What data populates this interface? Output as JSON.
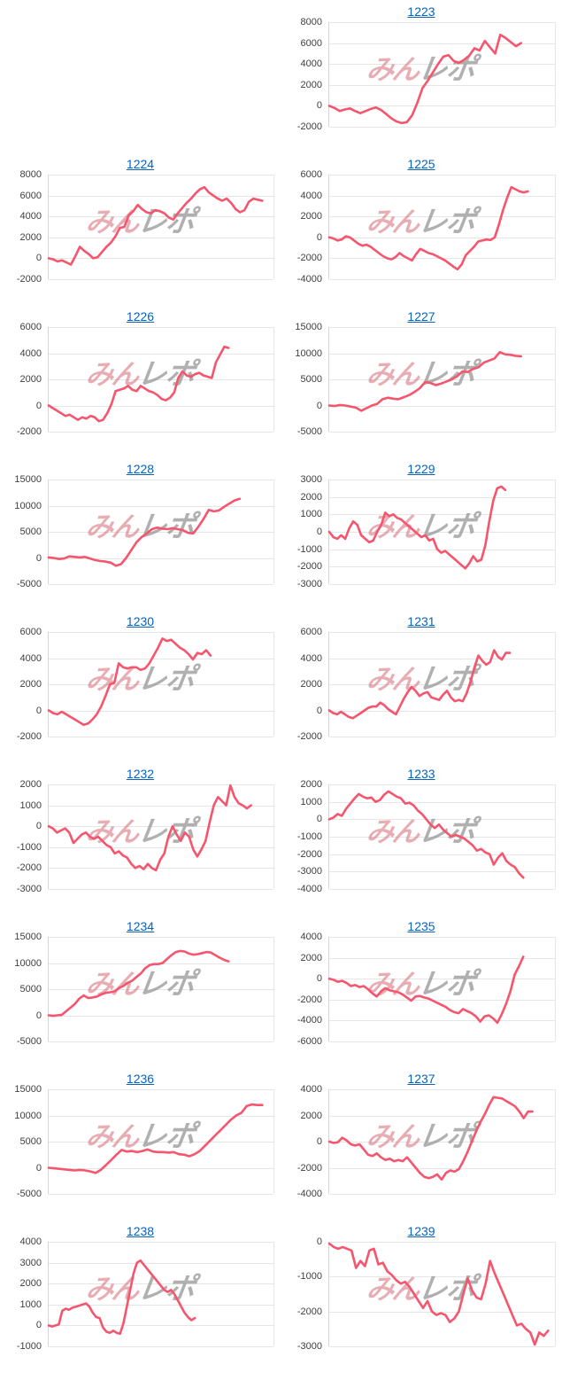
{
  "page": {
    "background": "#ffffff",
    "title_link_color": "#0563c1",
    "tick_label_color": "#404040",
    "gridline_color": "#e6e6e6"
  },
  "line_color": "#f5566e",
  "watermark": {
    "text_pink": "みん",
    "text_gray": "レポ",
    "pink": "#d56974",
    "gray": "#919191"
  },
  "chart_data": [
    {
      "title": "1223",
      "type": "line",
      "xlabel": "",
      "ylabel": "",
      "grid": true,
      "legend": "none",
      "ylim": [
        -2000,
        8000
      ],
      "ytick_step": 2000,
      "x_end": 0.85,
      "values": [
        0,
        -200,
        -500,
        -350,
        -250,
        -500,
        -700,
        -500,
        -300,
        -150,
        -400,
        -800,
        -1200,
        -1500,
        -1650,
        -1550,
        -900,
        300,
        1700,
        2400,
        3200,
        4000,
        4700,
        4850,
        4300,
        4100,
        4400,
        4800,
        5500,
        5300,
        6200,
        5600,
        5000,
        6800,
        6500,
        6100,
        5700,
        6000
      ]
    },
    {
      "title": "1224",
      "type": "line",
      "xlabel": "",
      "ylabel": "",
      "grid": true,
      "legend": "none",
      "ylim": [
        -2000,
        8000
      ],
      "ytick_step": 2000,
      "x_end": 0.95,
      "values": [
        0,
        -100,
        -300,
        -200,
        -400,
        -600,
        200,
        1100,
        700,
        400,
        0,
        100,
        600,
        1100,
        1500,
        2100,
        2900,
        3000,
        4100,
        4500,
        5100,
        4700,
        4400,
        4300,
        4600,
        4500,
        4300,
        3900,
        3700,
        4300,
        4800,
        5300,
        5700,
        6200,
        6600,
        6800,
        6300,
        6000,
        5700,
        5500,
        5700,
        5300,
        4700,
        4400,
        4600,
        5400,
        5700,
        5600,
        5500
      ]
    },
    {
      "title": "1225",
      "type": "line",
      "xlabel": "",
      "ylabel": "",
      "grid": true,
      "legend": "none",
      "ylim": [
        -4000,
        6000
      ],
      "ytick_step": 2000,
      "x_end": 0.88,
      "values": [
        0,
        -100,
        -300,
        -200,
        100,
        0,
        -300,
        -600,
        -800,
        -700,
        -900,
        -1200,
        -1500,
        -1800,
        -2000,
        -2100,
        -1900,
        -1500,
        -1800,
        -2000,
        -2200,
        -1600,
        -1100,
        -1300,
        -1500,
        -1600,
        -1800,
        -2000,
        -2200,
        -2500,
        -2800,
        -3050,
        -2600,
        -1700,
        -1300,
        -900,
        -400,
        -300,
        -200,
        -250,
        0,
        1200,
        2600,
        3800,
        4800,
        4600,
        4400,
        4300,
        4400
      ]
    },
    {
      "title": "1226",
      "type": "line",
      "xlabel": "",
      "ylabel": "",
      "grid": true,
      "legend": "none",
      "ylim": [
        -2000,
        6000
      ],
      "ytick_step": 2000,
      "x_end": 0.8,
      "values": [
        0,
        -200,
        -400,
        -600,
        -800,
        -700,
        -900,
        -1100,
        -900,
        -1000,
        -800,
        -900,
        -1200,
        -1100,
        -600,
        100,
        1100,
        1200,
        1300,
        1500,
        1200,
        1100,
        1500,
        1300,
        1100,
        1000,
        800,
        500,
        400,
        600,
        1000,
        2100,
        2600,
        2300,
        2200,
        2400,
        2500,
        2300,
        2200,
        2100,
        3300,
        3900,
        4500,
        4400
      ]
    },
    {
      "title": "1227",
      "type": "line",
      "xlabel": "",
      "ylabel": "",
      "grid": true,
      "legend": "none",
      "ylim": [
        -5000,
        15000
      ],
      "ytick_step": 5000,
      "x_end": 0.85,
      "values": [
        0,
        -100,
        100,
        0,
        -200,
        -400,
        -1000,
        -500,
        0,
        300,
        1200,
        1500,
        1300,
        1200,
        1600,
        2000,
        2600,
        3300,
        4500,
        4300,
        3900,
        4200,
        4600,
        5000,
        5600,
        6500,
        6400,
        7000,
        7300,
        8200,
        8600,
        9000,
        10200,
        9800,
        9700,
        9500,
        9400
      ]
    },
    {
      "title": "1228",
      "type": "line",
      "xlabel": "",
      "ylabel": "",
      "grid": true,
      "legend": "none",
      "ylim": [
        -5000,
        15000
      ],
      "ytick_step": 5000,
      "x_end": 0.85,
      "values": [
        100,
        0,
        -200,
        -100,
        300,
        200,
        100,
        200,
        -100,
        -400,
        -600,
        -700,
        -900,
        -1500,
        -1200,
        0,
        1500,
        3000,
        4000,
        4700,
        5500,
        5800,
        5600,
        5500,
        5700,
        5500,
        5300,
        4800,
        4700,
        6000,
        7500,
        9200,
        8900,
        9100,
        9800,
        10400,
        11000,
        11300
      ]
    },
    {
      "title": "1229",
      "type": "line",
      "xlabel": "",
      "ylabel": "",
      "grid": true,
      "legend": "none",
      "ylim": [
        -3000,
        3000
      ],
      "ytick_step": 1000,
      "x_end": 0.78,
      "values": [
        0,
        -300,
        -400,
        -200,
        -400,
        200,
        600,
        400,
        -200,
        -400,
        -600,
        -500,
        0,
        400,
        1100,
        900,
        1000,
        800,
        700,
        500,
        300,
        100,
        -100,
        -300,
        -200,
        -500,
        -400,
        -1000,
        -1200,
        -1100,
        -1300,
        -1500,
        -1700,
        -1900,
        -2100,
        -1800,
        -1400,
        -1700,
        -1600,
        -800,
        600,
        1800,
        2500,
        2600,
        2400
      ]
    },
    {
      "title": "1230",
      "type": "line",
      "xlabel": "",
      "ylabel": "",
      "grid": true,
      "legend": "none",
      "ylim": [
        -2000,
        6000
      ],
      "ytick_step": 2000,
      "x_end": 0.72,
      "values": [
        0,
        -200,
        -300,
        -100,
        -300,
        -500,
        -700,
        -900,
        -1100,
        -1000,
        -700,
        -300,
        300,
        1100,
        2000,
        2100,
        3600,
        3300,
        3200,
        3300,
        3300,
        3100,
        3200,
        3600,
        4200,
        4800,
        5500,
        5300,
        5400,
        5100,
        4800,
        4600,
        4300,
        3900,
        4400,
        4300,
        4600,
        4200
      ]
    },
    {
      "title": "1231",
      "type": "line",
      "xlabel": "",
      "ylabel": "",
      "grid": true,
      "legend": "none",
      "ylim": [
        -2000,
        6000
      ],
      "ytick_step": 2000,
      "x_end": 0.8,
      "values": [
        0,
        -200,
        -300,
        -100,
        -300,
        -500,
        -600,
        -400,
        -200,
        0,
        200,
        300,
        300,
        600,
        400,
        100,
        -100,
        -300,
        300,
        900,
        1400,
        1800,
        1500,
        1100,
        1300,
        1400,
        1000,
        900,
        800,
        1200,
        1500,
        1000,
        700,
        800,
        700,
        1300,
        2200,
        3300,
        4200,
        3800,
        3500,
        3700,
        4600,
        4100,
        3900,
        4400,
        4400
      ]
    },
    {
      "title": "1232",
      "type": "line",
      "xlabel": "",
      "ylabel": "",
      "grid": true,
      "legend": "none",
      "ylim": [
        -3000,
        2000
      ],
      "ytick_step": 1000,
      "x_end": 0.9,
      "values": [
        0,
        -100,
        -300,
        -200,
        -100,
        -300,
        -800,
        -600,
        -400,
        -300,
        -500,
        -600,
        -500,
        -700,
        -900,
        -1000,
        -1300,
        -1200,
        -1400,
        -1500,
        -1800,
        -2000,
        -1900,
        -2050,
        -1800,
        -2000,
        -2100,
        -1600,
        -1300,
        -500,
        0,
        -400,
        -700,
        -300,
        -500,
        -1100,
        -1450,
        -1100,
        -700,
        200,
        1000,
        1400,
        1200,
        1000,
        1950,
        1400,
        1100,
        1000,
        850,
        1000
      ]
    },
    {
      "title": "1233",
      "type": "line",
      "xlabel": "",
      "ylabel": "",
      "grid": true,
      "legend": "none",
      "ylim": [
        -4000,
        2000
      ],
      "ytick_step": 1000,
      "x_end": 0.86,
      "values": [
        0,
        100,
        300,
        200,
        600,
        900,
        1200,
        1450,
        1300,
        1200,
        1250,
        1000,
        1100,
        1400,
        1600,
        1450,
        1300,
        1200,
        900,
        950,
        800,
        500,
        300,
        0,
        -300,
        -500,
        -300,
        -600,
        -800,
        -1000,
        -900,
        -1000,
        -1100,
        -1300,
        -1500,
        -1800,
        -1700,
        -1900,
        -2000,
        -2600,
        -2200,
        -1950,
        -2400,
        -2600,
        -2750,
        -3100,
        -3350
      ]
    },
    {
      "title": "1234",
      "type": "line",
      "xlabel": "",
      "ylabel": "",
      "grid": true,
      "legend": "none",
      "ylim": [
        -5000,
        15000
      ],
      "ytick_step": 5000,
      "x_end": 0.8,
      "values": [
        0,
        -100,
        0,
        100,
        800,
        1500,
        2200,
        3200,
        3800,
        3300,
        3400,
        3600,
        4000,
        4300,
        4400,
        4600,
        5200,
        5600,
        6200,
        6600,
        7300,
        8000,
        9000,
        9600,
        9800,
        9800,
        10000,
        10800,
        11500,
        12100,
        12300,
        12200,
        11800,
        11600,
        11700,
        11900,
        12100,
        12000,
        11500,
        11000,
        10600,
        10300
      ]
    },
    {
      "title": "1235",
      "type": "line",
      "xlabel": "",
      "ylabel": "",
      "grid": true,
      "legend": "none",
      "ylim": [
        -6000,
        4000
      ],
      "ytick_step": 2000,
      "x_end": 0.86,
      "values": [
        0,
        -100,
        -300,
        -200,
        -400,
        -700,
        -600,
        -800,
        -700,
        -1000,
        -1400,
        -1700,
        -1200,
        -900,
        -1100,
        -1200,
        -1300,
        -1500,
        -1800,
        -2100,
        -1700,
        -1650,
        -1800,
        -1900,
        -2100,
        -2300,
        -2500,
        -2700,
        -3000,
        -3200,
        -3300,
        -2900,
        -3100,
        -3300,
        -3600,
        -4100,
        -3600,
        -3500,
        -3800,
        -4200,
        -3400,
        -2400,
        -1200,
        400,
        1200,
        2100
      ]
    },
    {
      "title": "1236",
      "type": "line",
      "xlabel": "",
      "ylabel": "",
      "grid": true,
      "legend": "none",
      "ylim": [
        -5000,
        15000
      ],
      "ytick_step": 5000,
      "x_end": 0.95,
      "values": [
        0,
        -100,
        -200,
        -300,
        -400,
        -500,
        -400,
        -500,
        -700,
        -1000,
        -400,
        500,
        1500,
        2500,
        3400,
        3100,
        3200,
        3000,
        3200,
        3500,
        3100,
        3000,
        3000,
        2900,
        3000,
        2600,
        2500,
        2200,
        2600,
        3200,
        4200,
        5200,
        6200,
        7200,
        8200,
        9200,
        10000,
        10500,
        11800,
        12100,
        12000,
        12000
      ]
    },
    {
      "title": "1237",
      "type": "line",
      "xlabel": "",
      "ylabel": "",
      "grid": true,
      "legend": "none",
      "ylim": [
        -4000,
        4000
      ],
      "ytick_step": 2000,
      "x_end": 0.9,
      "values": [
        0,
        -100,
        -50,
        300,
        100,
        -200,
        -300,
        -200,
        -600,
        -1000,
        -1100,
        -900,
        -1200,
        -1400,
        -1300,
        -1500,
        -1400,
        -1500,
        -1200,
        -1600,
        -2000,
        -2400,
        -2700,
        -2800,
        -2700,
        -2500,
        -2900,
        -2400,
        -2200,
        -2300,
        -2100,
        -1500,
        -800,
        0,
        800,
        1500,
        2100,
        2800,
        3400,
        3350,
        3300,
        3100,
        2900,
        2700,
        2300,
        1800,
        2300,
        2300
      ]
    },
    {
      "title": "1238",
      "type": "line",
      "xlabel": "",
      "ylabel": "",
      "grid": true,
      "legend": "none",
      "ylim": [
        -1000,
        4000
      ],
      "ytick_step": 1000,
      "x_end": 0.65,
      "values": [
        0,
        -50,
        0,
        50,
        700,
        800,
        750,
        850,
        900,
        950,
        1000,
        1050,
        900,
        600,
        400,
        350,
        -100,
        -300,
        -350,
        -250,
        -350,
        -400,
        100,
        900,
        1700,
        2500,
        3000,
        3100,
        2900,
        2700,
        2500,
        2300,
        2100,
        1900,
        1700,
        1600,
        1700,
        1500,
        1200,
        900,
        600,
        400,
        250,
        350
      ]
    },
    {
      "title": "1239",
      "type": "line",
      "xlabel": "",
      "ylabel": "",
      "grid": true,
      "legend": "none",
      "ylim": [
        -3000,
        0
      ],
      "ytick_step": 1000,
      "x_end": 0.97,
      "values": [
        -50,
        -150,
        -200,
        -150,
        -200,
        -250,
        -750,
        -550,
        -700,
        -250,
        -200,
        -650,
        -600,
        -850,
        -950,
        -1100,
        -1200,
        -1150,
        -1300,
        -1500,
        -1700,
        -1900,
        -1700,
        -2000,
        -2100,
        -2050,
        -2100,
        -2300,
        -2200,
        -2000,
        -1500,
        -1050,
        -1400,
        -1600,
        -1650,
        -1200,
        -550,
        -900,
        -1200,
        -1500,
        -1800,
        -2100,
        -2400,
        -2350,
        -2500,
        -2600,
        -2950,
        -2600,
        -2700,
        -2550
      ]
    }
  ]
}
